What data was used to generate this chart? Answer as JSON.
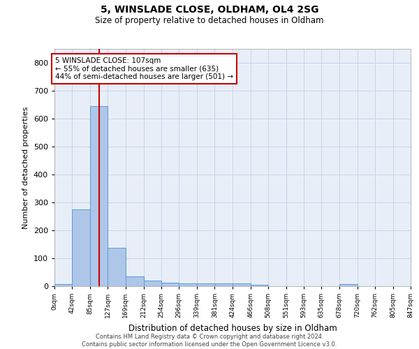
{
  "title_line1": "5, WINSLADE CLOSE, OLDHAM, OL4 2SG",
  "title_line2": "Size of property relative to detached houses in Oldham",
  "xlabel": "Distribution of detached houses by size in Oldham",
  "ylabel": "Number of detached properties",
  "footer_line1": "Contains HM Land Registry data © Crown copyright and database right 2024.",
  "footer_line2": "Contains public sector information licensed under the Open Government Licence v3.0.",
  "property_size": 107,
  "annotation_line1": "5 WINSLADE CLOSE: 107sqm",
  "annotation_line2": "← 55% of detached houses are smaller (635)",
  "annotation_line3": "44% of semi-detached houses are larger (501) →",
  "bin_edges": [
    0,
    42,
    85,
    127,
    169,
    212,
    254,
    296,
    339,
    381,
    424,
    466,
    508,
    551,
    593,
    635,
    678,
    720,
    762,
    805,
    847
  ],
  "bar_heights": [
    8,
    275,
    645,
    138,
    35,
    20,
    13,
    11,
    10,
    10,
    10,
    5,
    0,
    0,
    0,
    0,
    7,
    0,
    0,
    0
  ],
  "bar_color": "#aec6e8",
  "bar_edge_color": "#5b9bd5",
  "vline_color": "#cc0000",
  "vline_x": 107,
  "annotation_box_color": "#cc0000",
  "annotation_bg": "#ffffff",
  "grid_color": "#c8d4e8",
  "background_color": "#e8eef8",
  "ylim": [
    0,
    850
  ],
  "yticks": [
    0,
    100,
    200,
    300,
    400,
    500,
    600,
    700,
    800
  ]
}
